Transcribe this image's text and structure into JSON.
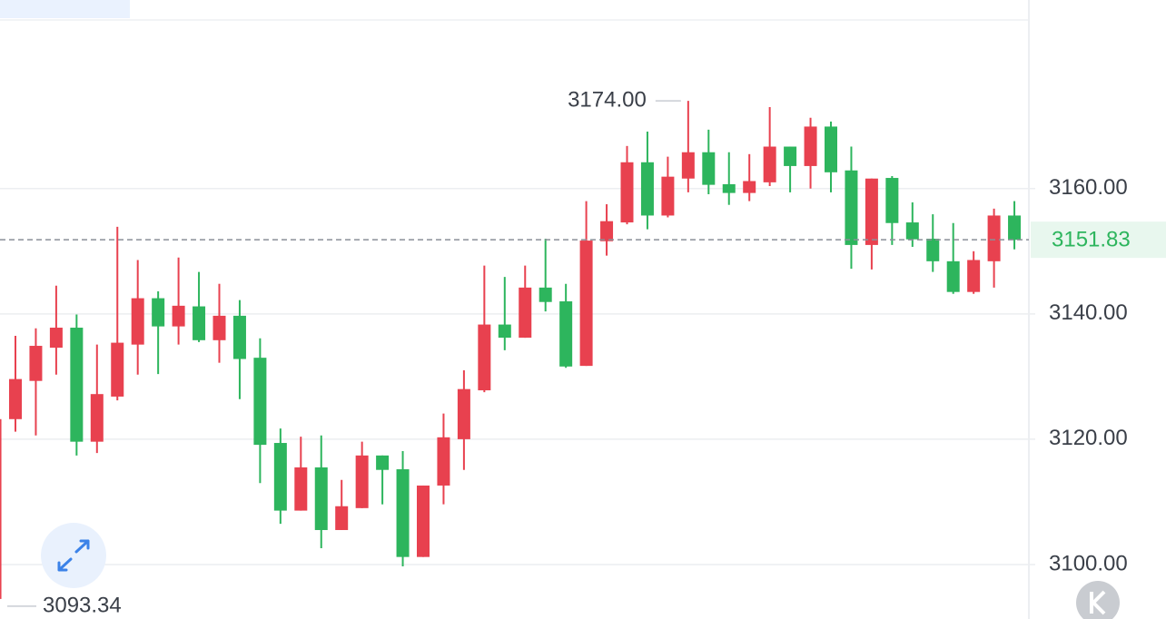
{
  "chart_data": {
    "type": "candlestick",
    "ylim": [
      3091.3,
      3190.1
    ],
    "yticks": [
      {
        "value": 3100,
        "label": "3100.00"
      },
      {
        "value": 3120,
        "label": "3120.00"
      },
      {
        "value": 3140,
        "label": "3140.00"
      },
      {
        "value": 3160,
        "label": "3160.00"
      }
    ],
    "grid": true,
    "up_color": "#e8414f",
    "down_color": "#2db55d",
    "open": [
      3094.5,
      3123.2,
      3129.3,
      3134.6,
      3137.8,
      3119.6,
      3126.8,
      3135.1,
      3142.5,
      3138.0,
      3141.2,
      3135.8,
      3139.7,
      3133.0,
      3119.4,
      3108.6,
      3115.5,
      3105.5,
      3109.0,
      3117.4,
      3115.2,
      3101.2,
      3112.6,
      3120.0,
      3127.8,
      3138.3,
      3136.2,
      3144.2,
      3142.0,
      3131.7,
      3151.6,
      3154.6,
      3164.2,
      3155.7,
      3161.6,
      3165.8,
      3160.7,
      3159.3,
      3161.0,
      3166.7,
      3163.6,
      3169.9,
      3162.9,
      3151.0,
      3161.7,
      3154.6,
      3152.0,
      3148.4,
      3143.5,
      3148.4,
      3155.7
    ],
    "high": [
      3123.2,
      3136.5,
      3137.7,
      3144.5,
      3139.9,
      3135.1,
      3153.9,
      3148.6,
      3143.6,
      3149.0,
      3146.7,
      3144.8,
      3142.2,
      3136.1,
      3121.7,
      3120.4,
      3120.6,
      3113.5,
      3119.6,
      3117.4,
      3118.1,
      3112.6,
      3124.1,
      3131.0,
      3147.7,
      3145.9,
      3147.7,
      3152.0,
      3144.8,
      3158.0,
      3157.5,
      3166.8,
      3169.1,
      3165.1,
      3174.0,
      3169.4,
      3165.8,
      3165.5,
      3173.0,
      3166.7,
      3171.3,
      3170.7,
      3166.7,
      3161.6,
      3162.0,
      3157.8,
      3155.9,
      3154.5,
      3150.0,
      3156.8,
      3158.0
    ],
    "low": [
      3093.34,
      3121.2,
      3120.6,
      3130.3,
      3117.4,
      3117.8,
      3126.2,
      3130.3,
      3130.4,
      3135.1,
      3135.5,
      3132.2,
      3126.4,
      3113.0,
      3106.5,
      3108.6,
      3102.6,
      3105.5,
      3109.0,
      3109.6,
      3099.7,
      3101.2,
      3109.6,
      3115.1,
      3127.5,
      3134.2,
      3136.2,
      3140.4,
      3131.4,
      3131.7,
      3149.3,
      3154.3,
      3153.5,
      3155.4,
      3159.4,
      3159.1,
      3157.4,
      3158.0,
      3160.4,
      3159.4,
      3160.0,
      3159.4,
      3147.2,
      3147.1,
      3151.0,
      3150.7,
      3146.7,
      3143.2,
      3143.2,
      3144.2,
      3150.3
    ],
    "close": [
      3123.2,
      3129.6,
      3134.9,
      3137.8,
      3119.6,
      3127.2,
      3135.4,
      3142.5,
      3138.0,
      3141.3,
      3135.8,
      3139.7,
      3132.8,
      3119.1,
      3108.6,
      3115.5,
      3105.5,
      3109.3,
      3117.4,
      3115.1,
      3101.2,
      3112.6,
      3120.3,
      3128.0,
      3138.3,
      3136.2,
      3144.2,
      3141.9,
      3131.6,
      3151.7,
      3154.8,
      3164.2,
      3155.7,
      3161.9,
      3165.8,
      3160.6,
      3159.3,
      3161.2,
      3166.7,
      3163.6,
      3169.9,
      3162.6,
      3151.0,
      3161.6,
      3154.5,
      3151.9,
      3148.4,
      3143.5,
      3148.6,
      3155.7,
      3151.83
    ],
    "max_annotation": {
      "value": 3174.0,
      "label": "3174.00"
    },
    "min_annotation": {
      "value": 3093.34,
      "label": "3093.34"
    },
    "last_price": {
      "value": 3151.83,
      "label": "3151.83"
    }
  }
}
